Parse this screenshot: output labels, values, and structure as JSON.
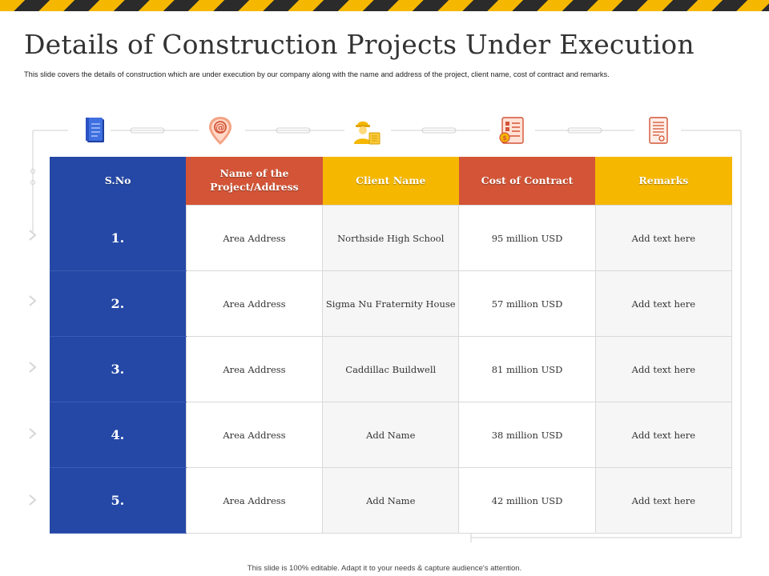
{
  "colors": {
    "blue": "#2548a6",
    "red": "#d35436",
    "yellow": "#f5b700",
    "stripe_dark": "#2b2b2b"
  },
  "title": "Details of Construction Projects Under Execution",
  "subtitle": "This slide covers the details of construction which are under execution by our company along with the name and address of the project, client name, cost of contract and remarks.",
  "icons": [
    "document-icon",
    "location-pin-icon",
    "worker-icon",
    "contract-cost-icon",
    "checklist-icon"
  ],
  "table": {
    "headers": [
      "S.No",
      "Name of the Project/Address",
      "Client Name",
      "Cost of Contract",
      "Remarks"
    ],
    "rows": [
      {
        "sno": "1.",
        "address": "Area Address",
        "client": "Northside High School",
        "cost": "95 million USD",
        "remarks": "Add text here"
      },
      {
        "sno": "2.",
        "address": "Area Address",
        "client": "Sigma Nu Fraternity  House",
        "cost": "57 million USD",
        "remarks": "Add text here"
      },
      {
        "sno": "3.",
        "address": "Area Address",
        "client": "Caddillac Buildwell",
        "cost": "81 million USD",
        "remarks": "Add text here"
      },
      {
        "sno": "4.",
        "address": "Area Address",
        "client": "Add Name",
        "cost": "38 million USD",
        "remarks": "Add text here"
      },
      {
        "sno": "5.",
        "address": "Area Address",
        "client": "Add Name",
        "cost": "42 million USD",
        "remarks": "Add text here"
      }
    ]
  },
  "footer": "This slide is 100% editable. Adapt it to your needs & capture audience's attention."
}
